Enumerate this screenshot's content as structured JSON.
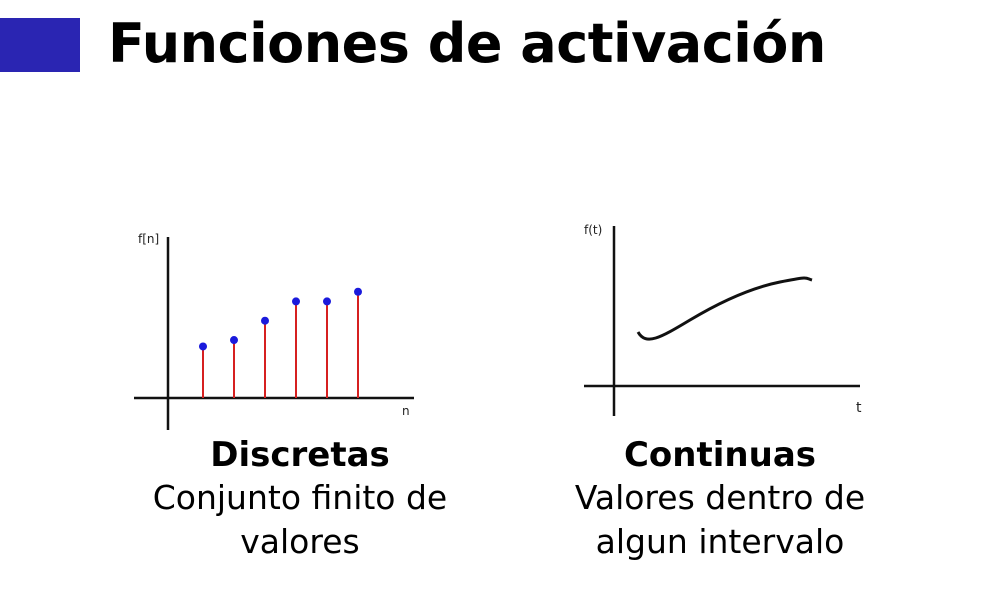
{
  "slide": {
    "title": "Funciones de activación",
    "accent_color": "#2a25b2"
  },
  "discrete": {
    "y_label": "f[n]",
    "x_label": "n",
    "heading": "Discretas",
    "desc_line1": "Conjunto finito de",
    "desc_line2": "valores",
    "stem_color": "#d62020",
    "point_color": "#1a1adc",
    "chart_data": {
      "type": "scatter",
      "x": [
        1,
        2,
        3,
        4,
        5,
        6
      ],
      "values": [
        1.6,
        1.8,
        2.4,
        3.0,
        3.0,
        3.3
      ],
      "ylim": [
        0,
        5
      ]
    }
  },
  "continuous": {
    "y_label": "f(t)",
    "x_label": "t",
    "heading": "Continuas",
    "desc_line1": "Valores dentro de",
    "desc_line2": "algun intervalo"
  }
}
